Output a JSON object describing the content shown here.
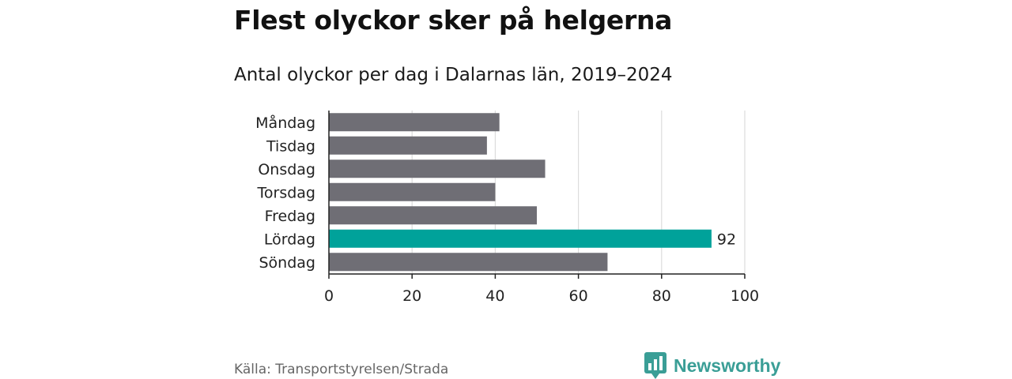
{
  "title": "Flest olyckor sker på helgerna",
  "subtitle": "Antal olyckor per dag i Dalarnas län, 2019–2024",
  "source": "Källa: Transportstyrelsen/Strada",
  "brand": {
    "name": "Newsworthy",
    "logo_icon": "newsworthy-chart-bubble-icon"
  },
  "colors": {
    "bar": "#6f6e75",
    "highlight": "#00a29a",
    "grid": "#dcdcdc",
    "axis": "#222222"
  },
  "chart_data": {
    "type": "bar",
    "orientation": "horizontal",
    "categories": [
      "Måndag",
      "Tisdag",
      "Onsdag",
      "Torsdag",
      "Fredag",
      "Lördag",
      "Söndag"
    ],
    "values": [
      41,
      38,
      52,
      40,
      50,
      92,
      67
    ],
    "highlight_index": 5,
    "data_labels": [
      {
        "category": "Lördag",
        "text": "92"
      }
    ],
    "xlim": [
      0,
      100
    ],
    "xticks": [
      0,
      20,
      40,
      60,
      80,
      100
    ],
    "grid": true,
    "xlabel": "",
    "ylabel": ""
  }
}
